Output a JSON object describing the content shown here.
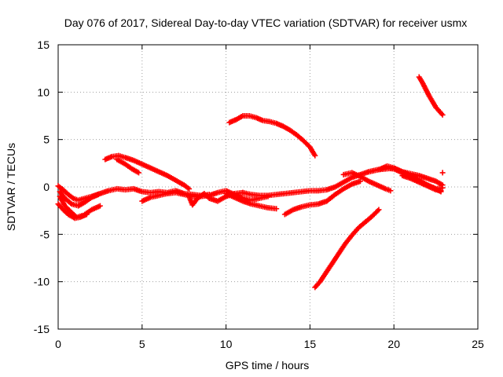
{
  "chart_data": {
    "type": "scatter",
    "title": "Day 076 of 2017, Sidereal Day-to-day VTEC variation (SDTVAR) for receiver usmx",
    "xlabel": "GPS time / hours",
    "ylabel": "SDTVAR / TECUs",
    "xlim": [
      0,
      25
    ],
    "ylim": [
      -15,
      15
    ],
    "xticks": [
      "0",
      "5",
      "10",
      "15",
      "20",
      "25"
    ],
    "yticks": [
      "15",
      "10",
      "5",
      "0",
      "-5",
      "-10",
      "-15"
    ],
    "grid": true,
    "marker": "+",
    "color": "#ff0000",
    "series": [
      {
        "name": "arc-early-1",
        "points": [
          [
            0.0,
            0.1
          ],
          [
            0.3,
            -0.3
          ],
          [
            0.6,
            -0.8
          ],
          [
            0.9,
            -1.2
          ],
          [
            1.2,
            -1.4
          ],
          [
            1.6,
            -1.2
          ],
          [
            2.0,
            -1.0
          ],
          [
            2.5,
            -0.7
          ],
          [
            3.0,
            -0.4
          ],
          [
            3.5,
            -0.2
          ],
          [
            4.0,
            -0.3
          ],
          [
            4.5,
            -0.2
          ],
          [
            5.0,
            -0.5
          ],
          [
            5.5,
            -0.6
          ],
          [
            6.0,
            -0.5
          ],
          [
            6.5,
            -0.6
          ],
          [
            7.0,
            -0.4
          ],
          [
            7.5,
            -0.7
          ],
          [
            8.0,
            -0.8
          ],
          [
            8.5,
            -0.9
          ],
          [
            9.0,
            -0.8
          ]
        ]
      },
      {
        "name": "arc-early-2",
        "points": [
          [
            0.1,
            -0.5
          ],
          [
            0.4,
            -1.2
          ],
          [
            0.8,
            -1.8
          ],
          [
            1.2,
            -2.0
          ],
          [
            1.6,
            -1.6
          ],
          [
            2.0,
            -1.1
          ],
          [
            2.4,
            -0.8
          ]
        ]
      },
      {
        "name": "arc-early-3",
        "points": [
          [
            0.1,
            -1.0
          ],
          [
            0.4,
            -2.0
          ],
          [
            0.8,
            -2.7
          ],
          [
            1.1,
            -3.2
          ],
          [
            1.5,
            -3.0
          ],
          [
            2.0,
            -2.4
          ],
          [
            2.5,
            -2.0
          ]
        ]
      },
      {
        "name": "arc-early-4",
        "points": [
          [
            0.0,
            -1.8
          ],
          [
            0.3,
            -2.4
          ],
          [
            0.6,
            -2.9
          ],
          [
            1.0,
            -3.3
          ],
          [
            1.3,
            -3.2
          ],
          [
            1.7,
            -2.9
          ]
        ]
      },
      {
        "name": "arc-3h",
        "points": [
          [
            2.8,
            2.9
          ],
          [
            3.2,
            3.2
          ],
          [
            3.6,
            3.3
          ],
          [
            4.0,
            3.1
          ],
          [
            4.5,
            2.8
          ],
          [
            5.0,
            2.4
          ],
          [
            5.5,
            2.0
          ],
          [
            6.0,
            1.6
          ],
          [
            6.5,
            1.2
          ],
          [
            7.0,
            0.7
          ],
          [
            7.5,
            0.2
          ],
          [
            7.8,
            -0.2
          ]
        ]
      },
      {
        "name": "arc-3h-b",
        "points": [
          [
            3.5,
            2.9
          ],
          [
            4.0,
            2.4
          ],
          [
            4.4,
            1.9
          ],
          [
            4.8,
            1.5
          ]
        ]
      },
      {
        "name": "arc-mid-1",
        "points": [
          [
            5.0,
            -1.5
          ],
          [
            5.5,
            -1.1
          ],
          [
            6.0,
            -0.9
          ],
          [
            6.5,
            -0.7
          ],
          [
            7.0,
            -0.6
          ],
          [
            7.5,
            -0.8
          ],
          [
            8.0,
            -1.0
          ],
          [
            8.5,
            -1.0
          ],
          [
            9.0,
            -0.9
          ],
          [
            9.5,
            -0.6
          ],
          [
            10.0,
            -0.4
          ],
          [
            10.5,
            -0.8
          ],
          [
            11.0,
            -1.2
          ],
          [
            11.5,
            -1.4
          ],
          [
            12.0,
            -1.2
          ],
          [
            12.5,
            -1.0
          ]
        ]
      },
      {
        "name": "arc-mid-2",
        "points": [
          [
            7.8,
            -1.0
          ],
          [
            8.0,
            -1.9
          ],
          [
            8.3,
            -1.2
          ],
          [
            8.7,
            -0.7
          ],
          [
            9.0,
            -1.2
          ],
          [
            9.5,
            -1.5
          ],
          [
            10.0,
            -1.0
          ],
          [
            10.5,
            -0.7
          ],
          [
            11.0,
            -0.6
          ]
        ]
      },
      {
        "name": "arc-mid-3",
        "points": [
          [
            10.0,
            -0.7
          ],
          [
            10.5,
            -1.1
          ],
          [
            11.0,
            -1.5
          ],
          [
            11.5,
            -1.8
          ],
          [
            12.0,
            -2.0
          ],
          [
            12.5,
            -2.2
          ],
          [
            13.0,
            -2.3
          ]
        ]
      },
      {
        "name": "arc-mid-4",
        "points": [
          [
            11.0,
            -0.6
          ],
          [
            11.5,
            -0.8
          ],
          [
            12.0,
            -0.9
          ],
          [
            12.5,
            -0.9
          ],
          [
            13.0,
            -0.8
          ],
          [
            13.5,
            -0.7
          ],
          [
            14.0,
            -0.6
          ],
          [
            14.5,
            -0.5
          ],
          [
            15.0,
            -0.4
          ],
          [
            15.5,
            -0.4
          ],
          [
            16.0,
            -0.3
          ],
          [
            16.5,
            0.0
          ],
          [
            17.0,
            0.5
          ],
          [
            17.5,
            1.0
          ],
          [
            18.0,
            1.3
          ],
          [
            18.5,
            1.6
          ],
          [
            19.0,
            1.8
          ],
          [
            19.5,
            2.0
          ],
          [
            20.0,
            1.9
          ],
          [
            20.5,
            1.5
          ],
          [
            21.0,
            1.0
          ],
          [
            21.5,
            0.6
          ],
          [
            22.0,
            0.2
          ],
          [
            22.5,
            -0.2
          ],
          [
            22.8,
            -0.5
          ]
        ]
      },
      {
        "name": "arc-mid-5",
        "points": [
          [
            13.5,
            -2.9
          ],
          [
            14.0,
            -2.4
          ],
          [
            14.5,
            -2.1
          ],
          [
            15.0,
            -1.9
          ],
          [
            15.5,
            -1.8
          ],
          [
            16.0,
            -1.5
          ],
          [
            16.5,
            -0.8
          ],
          [
            17.0,
            -0.2
          ],
          [
            17.5,
            0.3
          ],
          [
            18.0,
            0.6
          ]
        ]
      },
      {
        "name": "arc-late-1",
        "points": [
          [
            17.0,
            1.3
          ],
          [
            17.5,
            1.5
          ],
          [
            18.0,
            1.1
          ],
          [
            18.5,
            0.6
          ],
          [
            19.0,
            0.2
          ],
          [
            19.5,
            -0.2
          ],
          [
            19.8,
            -0.4
          ]
        ]
      },
      {
        "name": "arc-late-2",
        "points": [
          [
            18.5,
            1.6
          ],
          [
            19.0,
            1.8
          ],
          [
            19.5,
            1.9
          ],
          [
            20.0,
            2.0
          ],
          [
            20.5,
            1.6
          ],
          [
            21.0,
            1.4
          ],
          [
            21.5,
            1.2
          ],
          [
            22.0,
            0.9
          ],
          [
            22.5,
            0.6
          ],
          [
            22.9,
            0.2
          ]
        ]
      },
      {
        "name": "arc-late-3",
        "points": [
          [
            19.2,
            1.9
          ],
          [
            19.6,
            2.2
          ],
          [
            20.0,
            2.0
          ],
          [
            20.5,
            1.6
          ],
          [
            21.0,
            1.2
          ],
          [
            21.5,
            0.7
          ],
          [
            22.0,
            0.2
          ],
          [
            22.5,
            -0.2
          ],
          [
            22.9,
            -0.1
          ]
        ]
      },
      {
        "name": "arc-late-4",
        "points": [
          [
            20.5,
            1.2
          ],
          [
            21.0,
            0.9
          ],
          [
            21.5,
            0.5
          ],
          [
            22.0,
            0.1
          ],
          [
            22.5,
            -0.3
          ],
          [
            22.8,
            -0.4
          ]
        ]
      },
      {
        "name": "arc-11h",
        "points": [
          [
            10.2,
            6.8
          ],
          [
            10.6,
            7.1
          ],
          [
            11.0,
            7.5
          ],
          [
            11.4,
            7.5
          ],
          [
            11.8,
            7.3
          ],
          [
            12.2,
            7.0
          ],
          [
            12.6,
            6.9
          ],
          [
            13.0,
            6.7
          ],
          [
            13.4,
            6.4
          ],
          [
            13.8,
            6.0
          ],
          [
            14.2,
            5.5
          ],
          [
            14.6,
            4.9
          ],
          [
            15.0,
            4.2
          ],
          [
            15.3,
            3.3
          ]
        ]
      },
      {
        "name": "arc-15h-rise",
        "points": [
          [
            15.3,
            -10.6
          ],
          [
            15.6,
            -10.0
          ],
          [
            15.9,
            -9.2
          ],
          [
            16.2,
            -8.4
          ],
          [
            16.5,
            -7.6
          ],
          [
            16.8,
            -6.8
          ],
          [
            17.1,
            -6.0
          ],
          [
            17.5,
            -5.1
          ],
          [
            17.9,
            -4.3
          ],
          [
            18.3,
            -3.7
          ],
          [
            18.7,
            -3.1
          ],
          [
            19.1,
            -2.4
          ]
        ]
      },
      {
        "name": "arc-21h",
        "points": [
          [
            21.5,
            11.6
          ],
          [
            21.7,
            11.0
          ],
          [
            21.9,
            10.3
          ],
          [
            22.1,
            9.6
          ],
          [
            22.3,
            9.0
          ],
          [
            22.5,
            8.4
          ],
          [
            22.7,
            8.0
          ],
          [
            22.9,
            7.6
          ]
        ]
      },
      {
        "name": "isolated-point",
        "points": [
          [
            22.9,
            1.5
          ]
        ]
      }
    ]
  }
}
